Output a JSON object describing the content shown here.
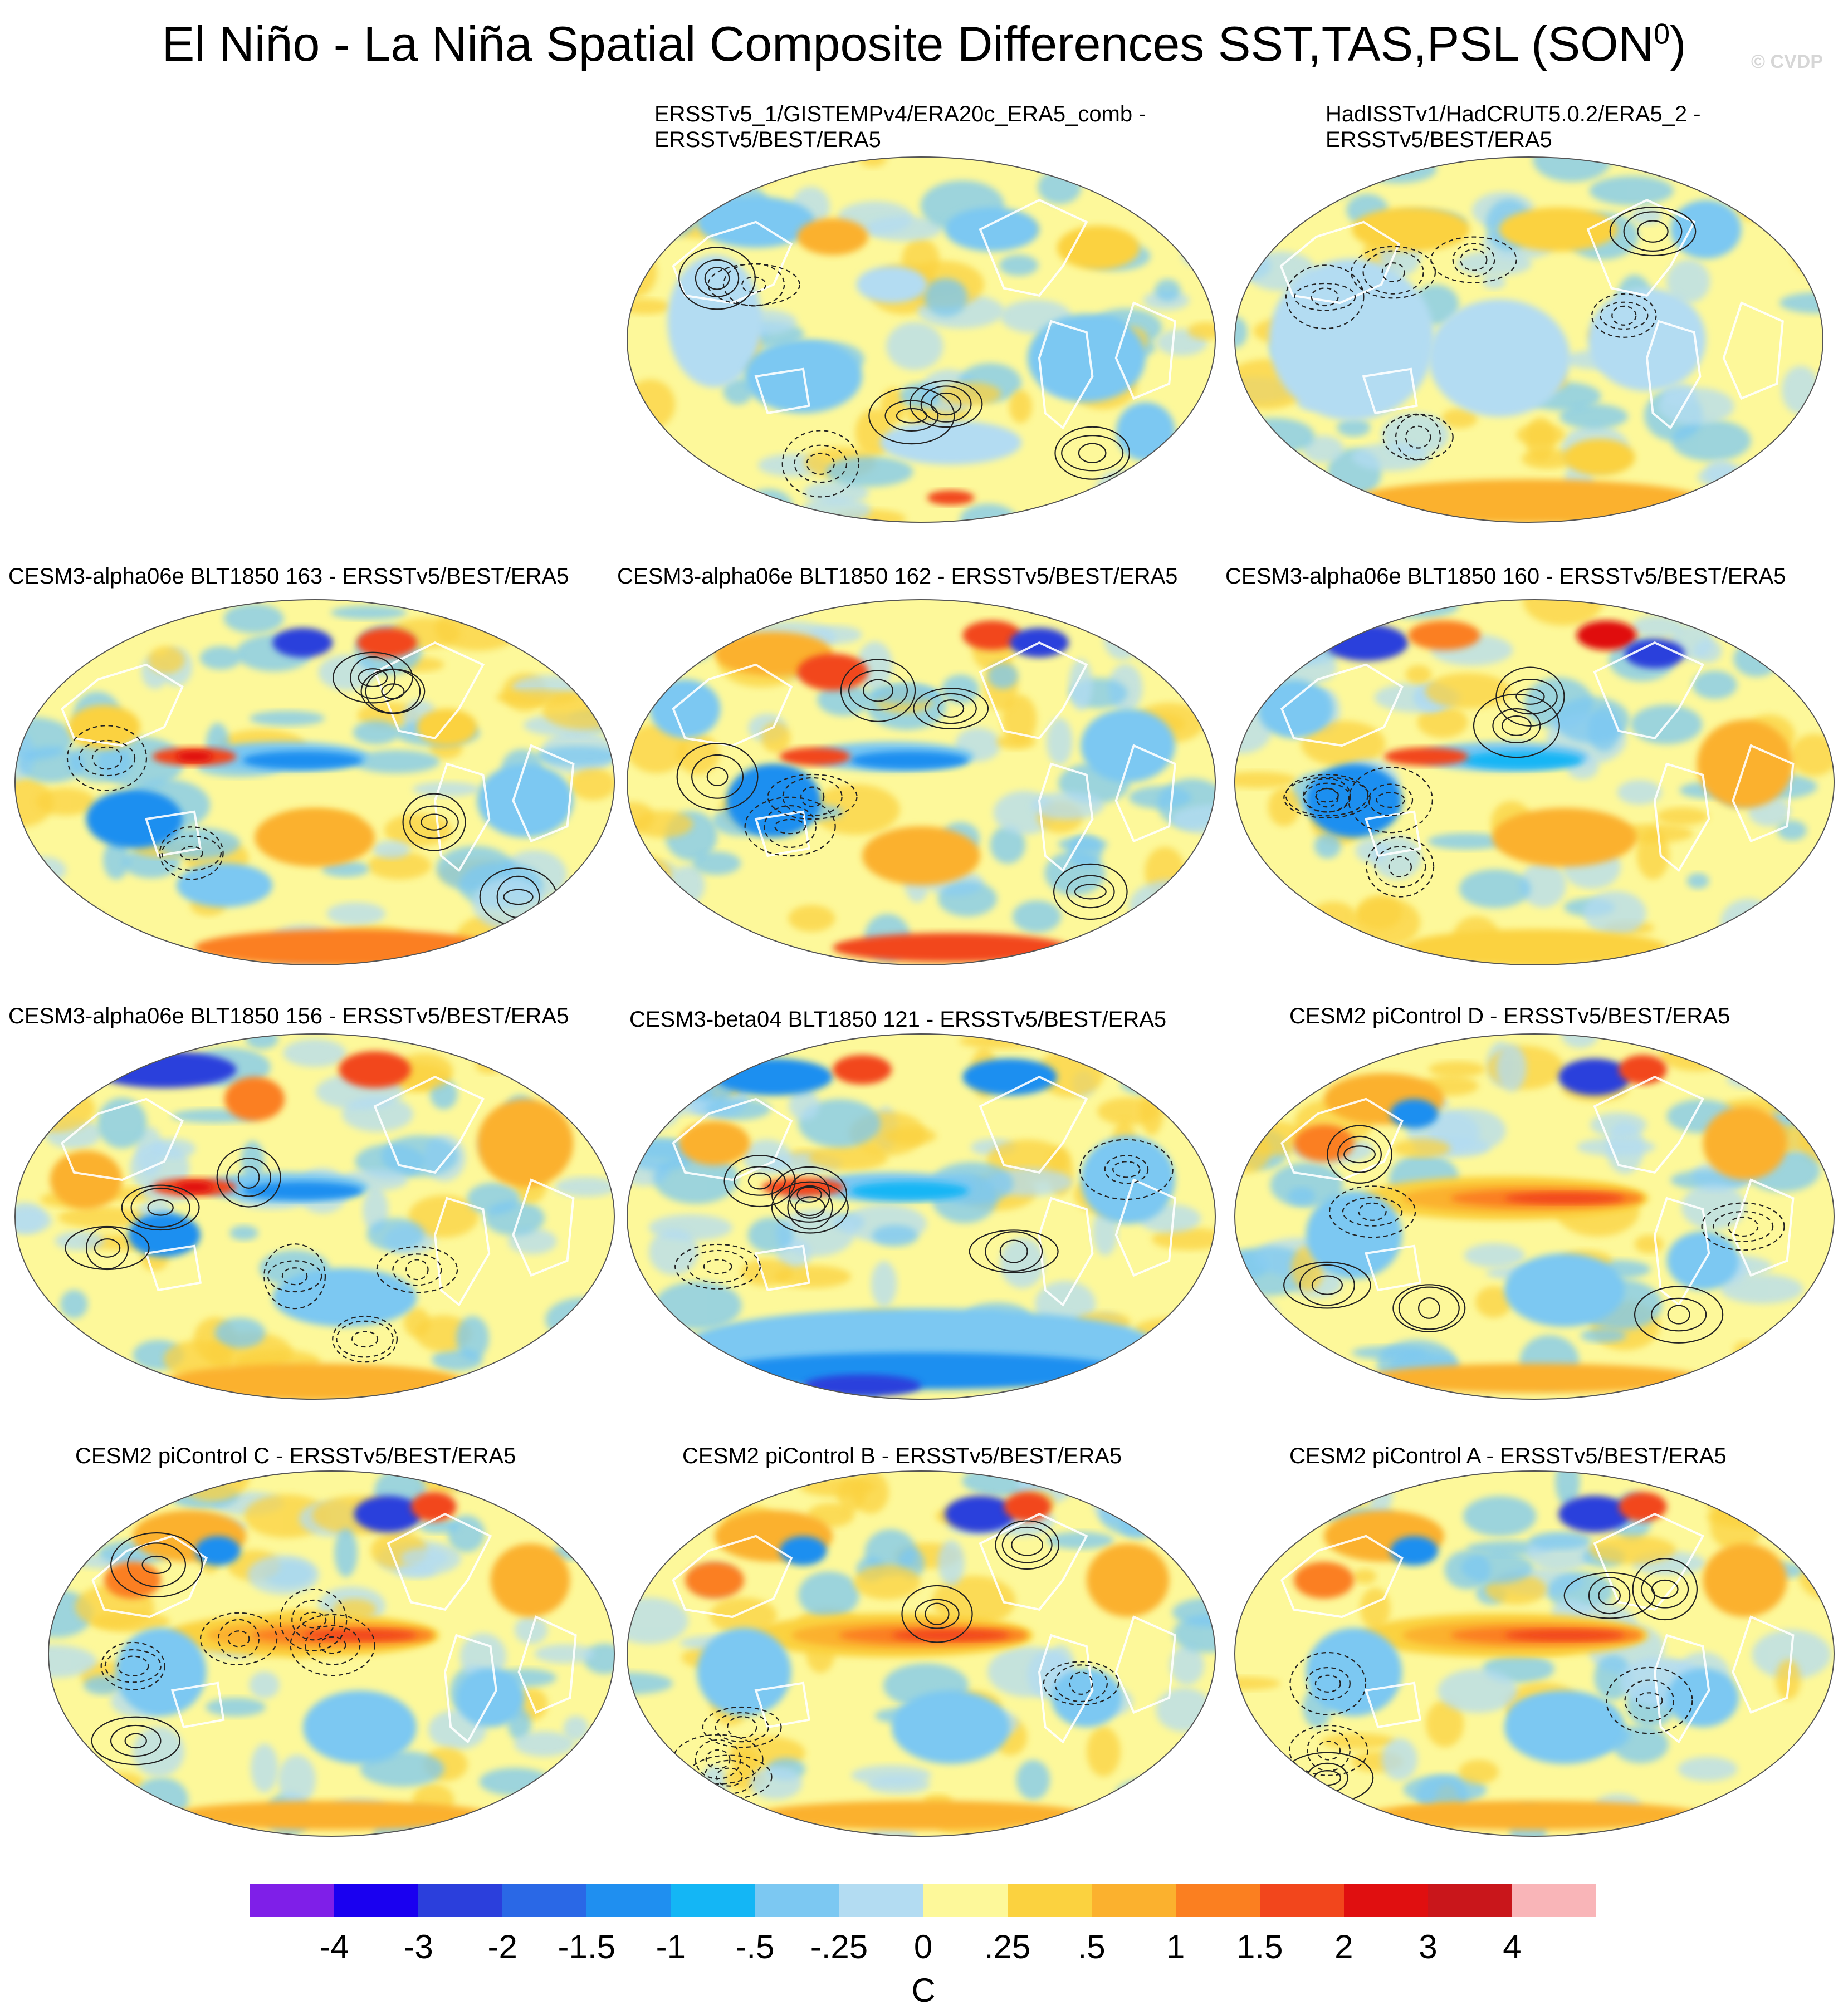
{
  "title": "El Niño - La Niña Spatial Composite Differences SST,TAS,PSL (SON",
  "title_sup": "0",
  "title_end": ")",
  "copyright": "© CVDP",
  "panels": [
    {
      "title_line1": "ERSSTv5_1/GISTEMPv4/ERA20c_ERA5_comb -",
      "title_line2": "ERSSTv5/BEST/ERA5",
      "style": "obs1"
    },
    {
      "title_line1": "HadISSTv1/HadCRUT5.0.2/ERA5_2 -",
      "title_line2": "ERSSTv5/BEST/ERA5",
      "style": "obs2"
    },
    {
      "title_line1": "CESM3-alpha06e BLT1850 163 - ERSSTv5/BEST/ERA5",
      "style": "m1"
    },
    {
      "title_line1": "CESM3-alpha06e BLT1850 162 - ERSSTv5/BEST/ERA5",
      "style": "m2"
    },
    {
      "title_line1": "CESM3-alpha06e BLT1850 160 - ERSSTv5/BEST/ERA5",
      "style": "m3"
    },
    {
      "title_line1": "CESM3-alpha06e BLT1850 156 - ERSSTv5/BEST/ERA5",
      "style": "m4"
    },
    {
      "title_line1": "CESM3-beta04 BLT1850 121 - ERSSTv5/BEST/ERA5",
      "style": "m5"
    },
    {
      "title_line1": "CESM2 piControl D - ERSSTv5/BEST/ERA5",
      "style": "pc"
    },
    {
      "title_line1": "CESM2 piControl C - ERSSTv5/BEST/ERA5",
      "style": "pc"
    },
    {
      "title_line1": "CESM2 piControl B - ERSSTv5/BEST/ERA5",
      "style": "pc"
    },
    {
      "title_line1": "CESM2 piControl A - ERSSTv5/BEST/ERA5",
      "style": "pc"
    }
  ],
  "colorbar": {
    "colors": [
      "#7f1fe8",
      "#1a00f0",
      "#2b3fdc",
      "#2a68e6",
      "#1f8ff0",
      "#14b6f5",
      "#7cc8f2",
      "#b3dcf2",
      "#fdf89a",
      "#fbd23f",
      "#fbb12e",
      "#fb7f20",
      "#f2461c",
      "#e00f10",
      "#c9161b",
      "#f9b5b8"
    ],
    "labels": [
      "-4",
      "-3",
      "-2",
      "-1.5",
      "-1",
      "-.5",
      "-.25",
      "0",
      ".25",
      ".5",
      "1",
      "1.5",
      "2",
      "3",
      "4"
    ],
    "units": "C"
  }
}
